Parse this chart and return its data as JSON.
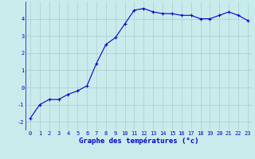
{
  "x": [
    0,
    1,
    2,
    3,
    4,
    5,
    6,
    7,
    8,
    9,
    10,
    11,
    12,
    13,
    14,
    15,
    16,
    17,
    18,
    19,
    20,
    21,
    22,
    23
  ],
  "y": [
    -1.8,
    -1.0,
    -0.7,
    -0.7,
    -0.4,
    -0.2,
    0.1,
    1.4,
    2.5,
    2.9,
    3.7,
    4.5,
    4.6,
    4.4,
    4.3,
    4.3,
    4.2,
    4.2,
    4.0,
    4.0,
    4.2,
    4.4,
    4.2,
    3.9
  ],
  "line_color": "#0000cc",
  "marker": "+",
  "marker_size": 3,
  "linewidth": 0.8,
  "bg_color": "#c8ecec",
  "grid_color": "#aacccc",
  "xlabel": "Graphe des températures (°c)",
  "xlabel_color": "#0000cc",
  "xlabel_fontsize": 6.5,
  "tick_color": "#0000cc",
  "tick_fontsize": 5.0,
  "xlim": [
    -0.5,
    23.5
  ],
  "ylim": [
    -2.5,
    5.0
  ],
  "yticks": [
    -2,
    -1,
    0,
    1,
    2,
    3,
    4
  ],
  "xticks": [
    0,
    1,
    2,
    3,
    4,
    5,
    6,
    7,
    8,
    9,
    10,
    11,
    12,
    13,
    14,
    15,
    16,
    17,
    18,
    19,
    20,
    21,
    22,
    23
  ]
}
